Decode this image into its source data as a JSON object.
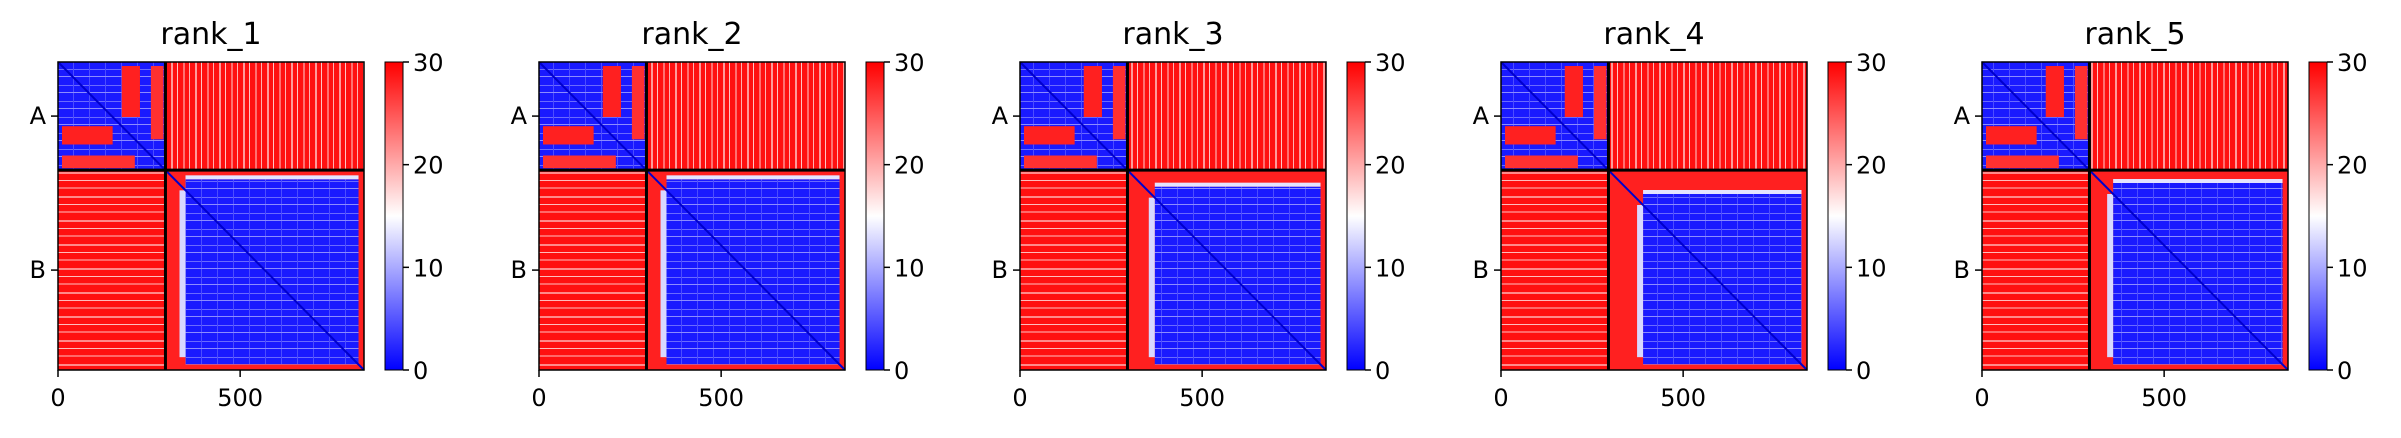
{
  "chart_data": [
    {
      "type": "heatmap",
      "title": "rank_1",
      "chains": [
        {
          "label": "A",
          "start": 0,
          "end": 295
        },
        {
          "label": "B",
          "start": 295,
          "end": 840
        }
      ],
      "x_ticks": [
        {
          "value": 0,
          "label": "0"
        },
        {
          "value": 500,
          "label": "500"
        }
      ],
      "colorbar": {
        "min": 0,
        "max": 30,
        "ticks": [
          "0",
          "10",
          "20",
          "30"
        ],
        "colors": [
          "#0000ff",
          "#ffffff",
          "#ff0000"
        ]
      },
      "b_domain_start": 350,
      "b_domain_end": 825
    },
    {
      "type": "heatmap",
      "title": "rank_2",
      "chains": [
        {
          "label": "A",
          "start": 0,
          "end": 295
        },
        {
          "label": "B",
          "start": 295,
          "end": 840
        }
      ],
      "x_ticks": [
        {
          "value": 0,
          "label": "0"
        },
        {
          "value": 500,
          "label": "500"
        }
      ],
      "colorbar": {
        "min": 0,
        "max": 30,
        "ticks": [
          "0",
          "10",
          "20",
          "30"
        ],
        "colors": [
          "#0000ff",
          "#ffffff",
          "#ff0000"
        ]
      },
      "b_domain_start": 350,
      "b_domain_end": 825
    },
    {
      "type": "heatmap",
      "title": "rank_3",
      "chains": [
        {
          "label": "A",
          "start": 0,
          "end": 295
        },
        {
          "label": "B",
          "start": 295,
          "end": 840
        }
      ],
      "x_ticks": [
        {
          "value": 0,
          "label": "0"
        },
        {
          "value": 500,
          "label": "500"
        }
      ],
      "colorbar": {
        "min": 0,
        "max": 30,
        "ticks": [
          "0",
          "10",
          "20",
          "30"
        ],
        "colors": [
          "#0000ff",
          "#ffffff",
          "#ff0000"
        ]
      },
      "b_domain_start": 370,
      "b_domain_end": 825
    },
    {
      "type": "heatmap",
      "title": "rank_4",
      "chains": [
        {
          "label": "A",
          "start": 0,
          "end": 295
        },
        {
          "label": "B",
          "start": 295,
          "end": 840
        }
      ],
      "x_ticks": [
        {
          "value": 0,
          "label": "0"
        },
        {
          "value": 500,
          "label": "500"
        }
      ],
      "colorbar": {
        "min": 0,
        "max": 30,
        "ticks": [
          "0",
          "10",
          "20",
          "30"
        ],
        "colors": [
          "#0000ff",
          "#ffffff",
          "#ff0000"
        ]
      },
      "b_domain_start": 390,
      "b_domain_end": 825
    },
    {
      "type": "heatmap",
      "title": "rank_5",
      "chains": [
        {
          "label": "A",
          "start": 0,
          "end": 295
        },
        {
          "label": "B",
          "start": 295,
          "end": 840
        }
      ],
      "x_ticks": [
        {
          "value": 0,
          "label": "0"
        },
        {
          "value": 500,
          "label": "500"
        }
      ],
      "colorbar": {
        "min": 0,
        "max": 30,
        "ticks": [
          "0",
          "10",
          "20",
          "30"
        ],
        "colors": [
          "#0000ff",
          "#ffffff",
          "#ff0000"
        ]
      },
      "b_domain_start": 360,
      "b_domain_end": 825
    }
  ]
}
